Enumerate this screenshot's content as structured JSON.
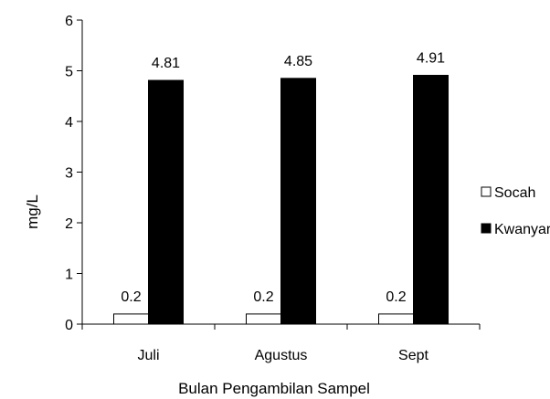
{
  "chart_data": {
    "type": "bar",
    "title": "",
    "xlabel": "Bulan Pengambilan Sampel",
    "ylabel": "mg/L",
    "categories": [
      "Juli",
      "Agustus",
      "Sept"
    ],
    "series": [
      {
        "name": "Socah",
        "values": [
          0.2,
          0.2,
          0.2
        ],
        "color": "#ffffff",
        "stroke": "#000000"
      },
      {
        "name": "Kwanyar",
        "values": [
          4.81,
          4.85,
          4.91
        ],
        "color": "#000000",
        "stroke": "#000000"
      }
    ],
    "ylim": [
      0,
      6
    ],
    "yticks": [
      0,
      1,
      2,
      3,
      4,
      5,
      6
    ],
    "data_labels": [
      [
        "0.2",
        "0.2",
        "0.2"
      ],
      [
        "4.81",
        "4.85",
        "4.91"
      ]
    ],
    "grid": false,
    "legend_position": "right"
  }
}
